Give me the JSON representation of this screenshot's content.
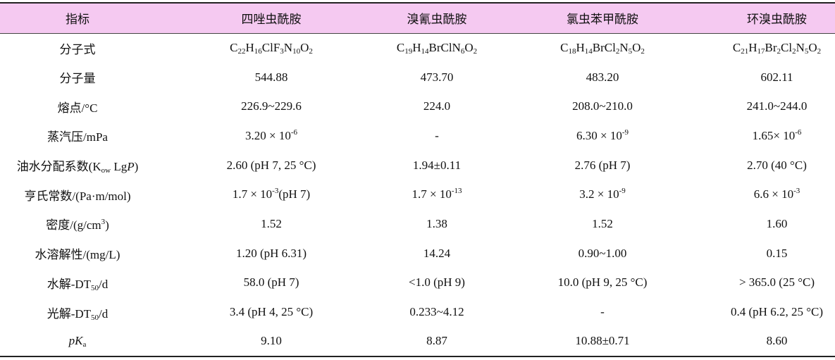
{
  "table": {
    "header": [
      "指标",
      "四唑虫酰胺",
      "溴氰虫酰胺",
      "氯虫苯甲酰胺",
      "环溴虫酰胺"
    ],
    "rows": [
      [
        "分子式",
        [
          "C",
          {
            "sub": "22"
          },
          "H",
          {
            "sub": "16"
          },
          "ClF",
          {
            "sub": "3"
          },
          "N",
          {
            "sub": "10"
          },
          "O",
          {
            "sub": "2"
          }
        ],
        [
          "C",
          {
            "sub": "19"
          },
          "H",
          {
            "sub": "14"
          },
          "BrClN",
          {
            "sub": "6"
          },
          "O",
          {
            "sub": "2"
          }
        ],
        [
          "C",
          {
            "sub": "18"
          },
          "H",
          {
            "sub": "14"
          },
          "BrCl",
          {
            "sub": "2"
          },
          "N",
          {
            "sub": "5"
          },
          "O",
          {
            "sub": "2"
          }
        ],
        [
          "C",
          {
            "sub": "21"
          },
          "H",
          {
            "sub": "17"
          },
          "Br",
          {
            "sub": "2"
          },
          "Cl",
          {
            "sub": "2"
          },
          "N",
          {
            "sub": "5"
          },
          "O",
          {
            "sub": "2"
          }
        ]
      ],
      [
        "分子量",
        "544.88",
        "473.70",
        "483.20",
        "602.11"
      ],
      [
        "熔点/°C",
        "226.9~229.6",
        "224.0",
        "208.0~210.0",
        "241.0~244.0"
      ],
      [
        "蒸汽压/mPa",
        [
          "3.20 × 10",
          {
            "sup": "-6"
          }
        ],
        "-",
        [
          "6.30 × 10",
          {
            "sup": "-9"
          }
        ],
        [
          "1.65× 10",
          {
            "sup": "-6"
          }
        ]
      ],
      [
        [
          "油水分配系数(K",
          {
            "sub": "ow"
          },
          " Lg",
          {
            "i": "P"
          },
          ")"
        ],
        "2.60 (pH 7, 25 °C)",
        "1.94±0.11",
        "2.76 (pH 7)",
        "2.70 (40 °C)"
      ],
      [
        "亨氏常数/(Pa·m/mol)",
        [
          "1.7 × 10",
          {
            "sup": "-3"
          },
          "(pH 7)"
        ],
        [
          "1.7 × 10",
          {
            "sup": "-13"
          }
        ],
        [
          "3.2 × 10",
          {
            "sup": "-9"
          }
        ],
        [
          "6.6 × 10",
          {
            "sup": "-3"
          }
        ]
      ],
      [
        [
          "密度/(g/cm",
          {
            "sup": "3"
          },
          ")"
        ],
        "1.52",
        "1.38",
        "1.52",
        "1.60"
      ],
      [
        "水溶解性/(mg/L)",
        "1.20 (pH 6.31)",
        "14.24",
        "0.90~1.00",
        "0.15"
      ],
      [
        [
          "水解-DT",
          {
            "sub": "50"
          },
          "/d"
        ],
        "58.0 (pH 7)",
        "<1.0 (pH 9)",
        "10.0 (pH 9, 25 °C)",
        "> 365.0 (25 °C)"
      ],
      [
        [
          "光解-DT",
          {
            "sub": "50"
          },
          "/d"
        ],
        "3.4 (pH 4, 25 °C)",
        "0.233~4.12",
        "-",
        "0.4 (pH 6.2, 25 °C)"
      ],
      [
        [
          {
            "i": "p"
          },
          {
            "i": "K"
          },
          {
            "sub": "a"
          }
        ],
        "9.10",
        "8.87",
        "10.88±0.71",
        "8.60"
      ]
    ]
  }
}
